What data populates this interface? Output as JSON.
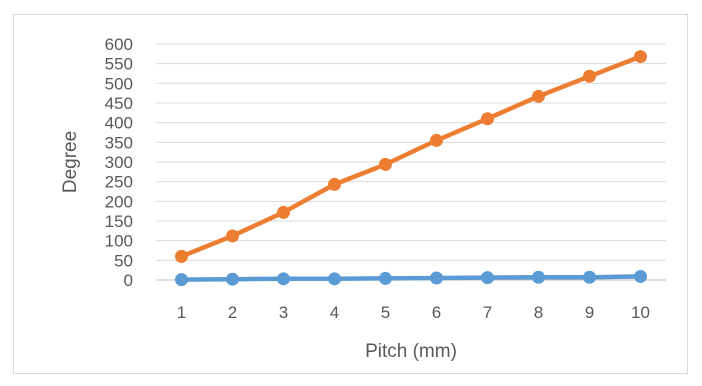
{
  "chart_data": {
    "type": "line",
    "title": "",
    "xlabel": "Pitch (mm)",
    "ylabel": "Degree",
    "x": [
      1,
      2,
      3,
      4,
      5,
      6,
      7,
      8,
      9,
      10
    ],
    "ylim": [
      0,
      600
    ],
    "yticks": [
      0,
      50,
      100,
      150,
      200,
      250,
      300,
      350,
      400,
      450,
      500,
      550,
      600
    ],
    "grid": true,
    "legend": "none",
    "series": [
      {
        "values": [
          1,
          2,
          3,
          3,
          4,
          5,
          6,
          7,
          7,
          9
        ],
        "color": "#5b9bd5"
      },
      {
        "values": [
          60,
          112,
          172,
          243,
          294,
          355,
          410,
          467,
          518,
          568
        ],
        "color": "#ed7d31"
      }
    ]
  }
}
